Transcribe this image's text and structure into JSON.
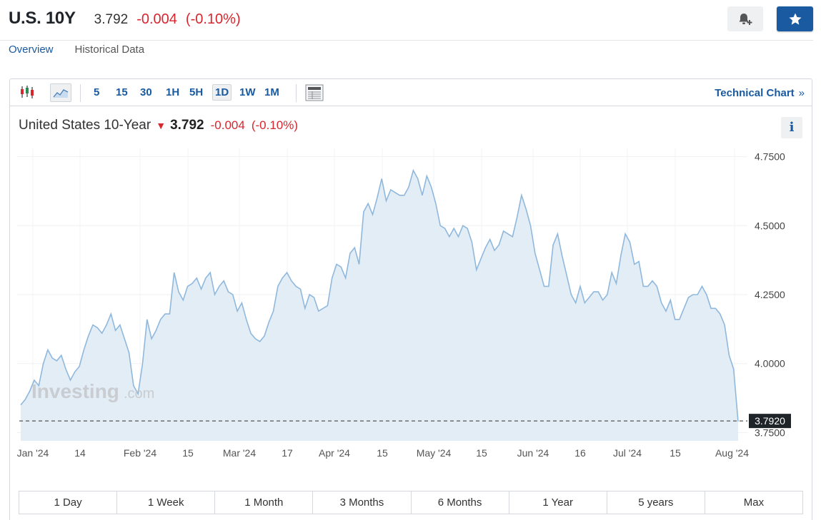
{
  "header": {
    "symbol": "U.S. 10Y",
    "price": "3.792",
    "change": "-0.004",
    "change_pct": "(-0.10%)"
  },
  "nav": {
    "overview": "Overview",
    "historical": "Historical Data"
  },
  "toolbar": {
    "timeframes": [
      "5",
      "15",
      "30",
      "1H",
      "5H",
      "1D",
      "1W",
      "1M"
    ],
    "active_timeframe": "1D",
    "technical_chart": "Technical Chart",
    "technical_chart_arrow": "»"
  },
  "chart_title": {
    "name": "United States 10-Year",
    "price": "3.792",
    "change": "-0.004",
    "change_pct": "(-0.10%)"
  },
  "info_label": "i",
  "watermark": {
    "main": "Investing",
    "suffix": ".com"
  },
  "ranges": [
    "1 Day",
    "1 Week",
    "1 Month",
    "3 Months",
    "6 Months",
    "1 Year",
    "5 years",
    "Max"
  ],
  "colors": {
    "accent": "#1a5aa0",
    "down": "#d8262e",
    "line": "#8fb8dc",
    "fill": "#e3edf6"
  },
  "chart_data": {
    "type": "area",
    "title": "United States 10-Year",
    "ylim": [
      3.72,
      4.78
    ],
    "y_ticks": [
      3.75,
      4.0,
      4.25,
      4.5,
      4.75
    ],
    "y_tick_labels": [
      "3.7500",
      "4.0000",
      "4.2500",
      "4.5000",
      "4.7500"
    ],
    "x_tick_labels": [
      "Jan '24",
      "14",
      "Feb '24",
      "15",
      "Mar '24",
      "17",
      "Apr '24",
      "15",
      "May '24",
      "15",
      "Jun '24",
      "16",
      "Jul '24",
      "15",
      "Aug '24"
    ],
    "last_value": 3.792,
    "last_value_label": "3.7920",
    "grid": true,
    "values": [
      3.85,
      3.87,
      3.9,
      3.94,
      3.92,
      4.0,
      4.05,
      4.02,
      4.01,
      4.03,
      3.98,
      3.94,
      3.97,
      3.99,
      4.05,
      4.1,
      4.14,
      4.13,
      4.11,
      4.14,
      4.18,
      4.12,
      4.14,
      4.09,
      4.04,
      3.92,
      3.89,
      4.0,
      4.16,
      4.09,
      4.12,
      4.16,
      4.18,
      4.18,
      4.33,
      4.26,
      4.23,
      4.28,
      4.29,
      4.31,
      4.27,
      4.31,
      4.33,
      4.25,
      4.28,
      4.3,
      4.26,
      4.25,
      4.19,
      4.22,
      4.16,
      4.11,
      4.09,
      4.08,
      4.1,
      4.15,
      4.19,
      4.28,
      4.31,
      4.33,
      4.3,
      4.28,
      4.27,
      4.2,
      4.25,
      4.24,
      4.19,
      4.2,
      4.21,
      4.31,
      4.36,
      4.35,
      4.31,
      4.4,
      4.42,
      4.36,
      4.55,
      4.58,
      4.54,
      4.6,
      4.67,
      4.59,
      4.63,
      4.62,
      4.61,
      4.61,
      4.64,
      4.7,
      4.67,
      4.61,
      4.68,
      4.64,
      4.58,
      4.5,
      4.49,
      4.46,
      4.49,
      4.46,
      4.5,
      4.49,
      4.44,
      4.34,
      4.38,
      4.42,
      4.45,
      4.41,
      4.43,
      4.48,
      4.47,
      4.46,
      4.53,
      4.61,
      4.56,
      4.5,
      4.4,
      4.34,
      4.28,
      4.28,
      4.43,
      4.47,
      4.39,
      4.32,
      4.25,
      4.22,
      4.28,
      4.22,
      4.24,
      4.26,
      4.26,
      4.23,
      4.25,
      4.33,
      4.29,
      4.39,
      4.47,
      4.44,
      4.36,
      4.37,
      4.28,
      4.28,
      4.3,
      4.28,
      4.22,
      4.19,
      4.23,
      4.16,
      4.16,
      4.2,
      4.24,
      4.25,
      4.25,
      4.28,
      4.25,
      4.2,
      4.2,
      4.18,
      4.14,
      4.03,
      3.98,
      3.79
    ]
  }
}
